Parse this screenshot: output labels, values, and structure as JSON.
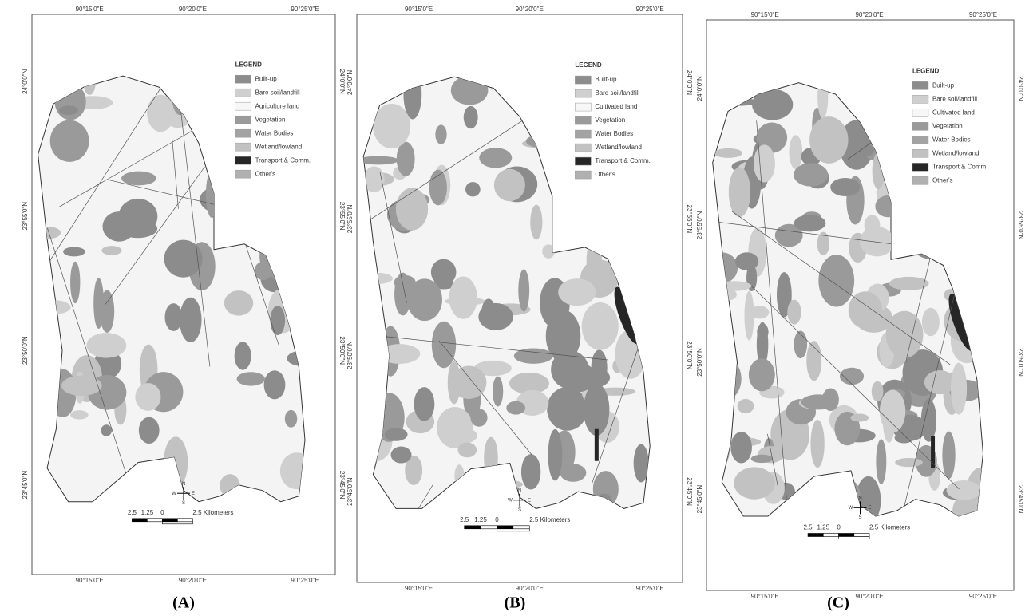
{
  "panels": [
    {
      "caption": "(A)",
      "top_lon": [
        "90°15'0\"E",
        "90°20'0\"E",
        "90°25'0\"E"
      ],
      "bottom_lon": [
        "90°15'0\"E",
        "90°20'0\"E",
        "90°25'0\"E"
      ],
      "left_lat": [
        "24°0'0\"N",
        "23°55'0\"N",
        "23°50'0\"N",
        "23°45'0\"N"
      ],
      "right_lat": [
        "24°0'0\"N",
        "23°55'0\"N",
        "23°50'0\"N",
        "23°45'0\"N"
      ],
      "legend": {
        "title": "LEGEND",
        "items": [
          {
            "label": "Built-up",
            "color": "#8c8c8c"
          },
          {
            "label": "Bare soil/landfill",
            "color": "#cfcfcf"
          },
          {
            "label": "Agriculture land",
            "color": "#f7f7f7"
          },
          {
            "label": "Vegetation",
            "color": "#9a9a9a"
          },
          {
            "label": "Water Bodies",
            "color": "#a3a3a3"
          },
          {
            "label": "Wetland/lowland",
            "color": "#c2c2c2"
          },
          {
            "label": "Transport & Comm.",
            "color": "#262626"
          },
          {
            "label": "Other's",
            "color": "#b0b0b0"
          }
        ]
      },
      "scale": [
        "2.5",
        "1.25",
        "0",
        "2.5 Kilometers"
      ],
      "compass": [
        "N",
        "W",
        "E",
        "S"
      ]
    },
    {
      "caption": "(B)",
      "top_lon": [
        "90°15'0\"E",
        "90°20'0\"E",
        "90°25'0\"E"
      ],
      "bottom_lon": [
        "90°15'0\"E",
        "90°20'0\"E",
        "90°25'0\"E"
      ],
      "left_lat": [
        "24°0'0\"N",
        "23°55'0\"N",
        "23°50'0\"N",
        "23°45'0\"N"
      ],
      "right_lat": [
        "24°0'0\"N",
        "23°55'0\"N",
        "23°50'0\"N",
        "23°45'0\"N"
      ],
      "legend": {
        "title": "LEGEND",
        "items": [
          {
            "label": "Built-up",
            "color": "#8c8c8c"
          },
          {
            "label": "Bare soil/landfill",
            "color": "#cfcfcf"
          },
          {
            "label": "Cultivated land",
            "color": "#f7f7f7"
          },
          {
            "label": "Vegetation",
            "color": "#9a9a9a"
          },
          {
            "label": "Water Bodies",
            "color": "#a3a3a3"
          },
          {
            "label": "Wetland/lowland",
            "color": "#c2c2c2"
          },
          {
            "label": "Transport & Comm.",
            "color": "#262626"
          },
          {
            "label": "Other's",
            "color": "#b0b0b0"
          }
        ]
      },
      "scale": [
        "2.5",
        "1.25",
        "0",
        "2.5 Kilometers"
      ],
      "compass": [
        "N",
        "W",
        "E",
        "S"
      ]
    },
    {
      "caption": "(C)",
      "top_lon": [
        "90°15'0\"E",
        "90°20'0\"E",
        "90°25'0\"E"
      ],
      "bottom_lon": [
        "90°15'0\"E",
        "90°20'0\"E",
        "90°25'0\"E"
      ],
      "left_lat": [
        "24°0'0\"N",
        "23°55'0\"N",
        "23°50'0\"N",
        "23°45'0\"N"
      ],
      "right_lat": [
        "24°0'0\"N",
        "23°55'0\"N",
        "23°50'0\"N",
        "23°45'0\"N"
      ],
      "legend": {
        "title": "LEGEND",
        "items": [
          {
            "label": "Built-up",
            "color": "#8c8c8c"
          },
          {
            "label": "Bare soil/landfill",
            "color": "#cfcfcf"
          },
          {
            "label": "Cultivated land",
            "color": "#f7f7f7"
          },
          {
            "label": "Vegetation",
            "color": "#9a9a9a"
          },
          {
            "label": "Water Bodies",
            "color": "#a3a3a3"
          },
          {
            "label": "Wetland/lowland",
            "color": "#c2c2c2"
          },
          {
            "label": "Transport & Comm.",
            "color": "#262626"
          },
          {
            "label": "Other's",
            "color": "#b0b0b0"
          }
        ]
      },
      "scale": [
        "2.5",
        "1.25",
        "0",
        "2.5 Kilometers"
      ],
      "compass": [
        "N",
        "W",
        "E",
        "S"
      ]
    }
  ]
}
